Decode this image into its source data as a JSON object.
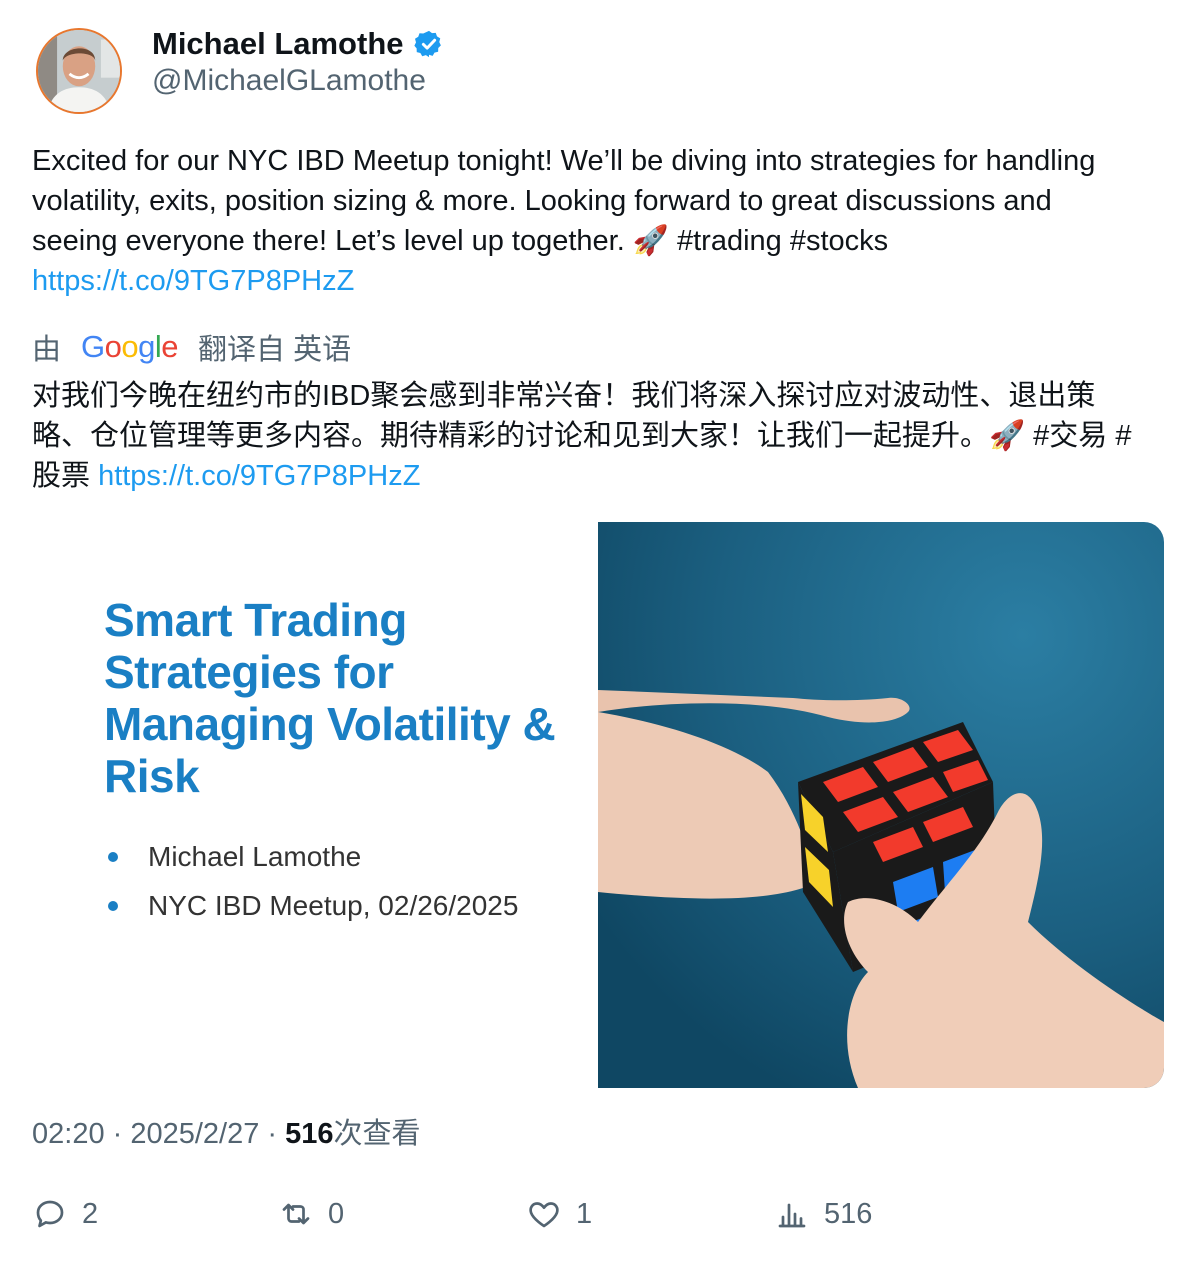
{
  "author": {
    "name": "Michael Lamothe",
    "handle": "@MichaelGLamothe",
    "verified_color": "#1d9bf0"
  },
  "tweet": {
    "text": "Excited for our NYC IBD Meetup tonight! We’ll be diving into strategies for handling volatility, exits, position sizing & more. Looking forward to great discussions and seeing everyone there! Let’s level up together. 🚀 #trading #stocks ",
    "link": "https://t.co/9TG7P8PHzZ"
  },
  "translation": {
    "by_label": "由",
    "provider": "Google",
    "from_label": "翻译自 英语",
    "text": "对我们今晚在纽约市的IBD聚会感到非常兴奋！我们将深入探讨应对波动性、退出策略、仓位管理等更多内容。期待精彩的讨论和见到大家！让我们一起提升。🚀 #交易 #股票 ",
    "link": "https://t.co/9TG7P8PHzZ"
  },
  "media": {
    "slide_title": "Smart Trading Strategies for Managing Volatility & Risk",
    "bullets": [
      "Michael Lamothe",
      "NYC IBD Meetup, 02/26/2025"
    ],
    "photo_icon": "rubiks-cube-hands-photo"
  },
  "meta": {
    "time": "02:20",
    "sep": " · ",
    "date": "2025/2/27",
    "views_count": "516",
    "views_label": "次查看"
  },
  "actions": {
    "replies": "2",
    "retweets": "0",
    "likes": "1",
    "views": "516"
  }
}
